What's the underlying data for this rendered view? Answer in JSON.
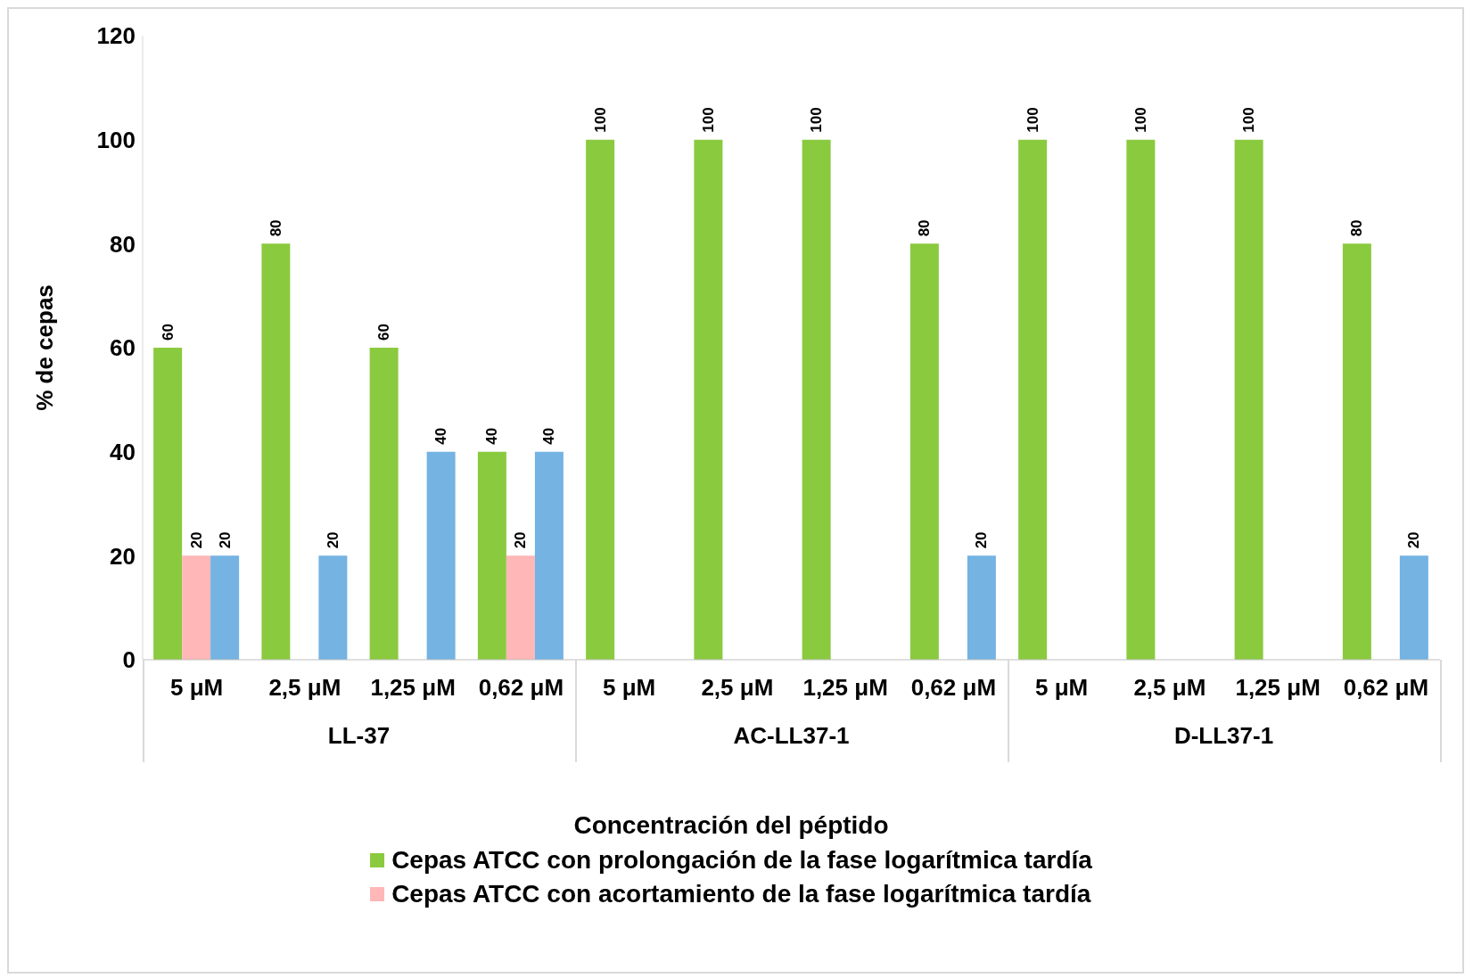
{
  "chart_data": {
    "type": "bar",
    "xlabel": "Concentración del péptido",
    "ylabel": "% de cepas",
    "categories": [
      "5 μM",
      "2,5 μM",
      "1,25 μM",
      "0,62 μM",
      "5 μM",
      "2,5 μM",
      "1,25 μM",
      "0,62 μM",
      "5 μM",
      "2,5 μM",
      "1,25 μM",
      "0,62 μM"
    ],
    "annotations": [
      "LL-37",
      "AC-LL37-1",
      "D-LL37-1"
    ],
    "series": [
      {
        "name": "Cepas ATCC con prolongación de la fase logarítmica tardía",
        "color": "#8aca3f",
        "values": [
          60,
          80,
          60,
          40,
          100,
          100,
          100,
          80,
          100,
          100,
          100,
          80
        ]
      },
      {
        "name": "Cepas ATCC con acortamiento de la fase logarítmica tardía",
        "color": "#ffb7b7",
        "values": [
          20,
          null,
          null,
          20,
          null,
          null,
          null,
          null,
          null,
          null,
          null,
          null
        ]
      },
      {
        "color": "#74b3e2",
        "values": [
          20,
          20,
          40,
          40,
          null,
          null,
          null,
          20,
          null,
          null,
          null,
          20
        ]
      }
    ],
    "ylim": [
      0,
      120
    ],
    "yticks": [
      0,
      20,
      40,
      60,
      80,
      100,
      120
    ],
    "data_labels": true,
    "legend": "bottom"
  }
}
